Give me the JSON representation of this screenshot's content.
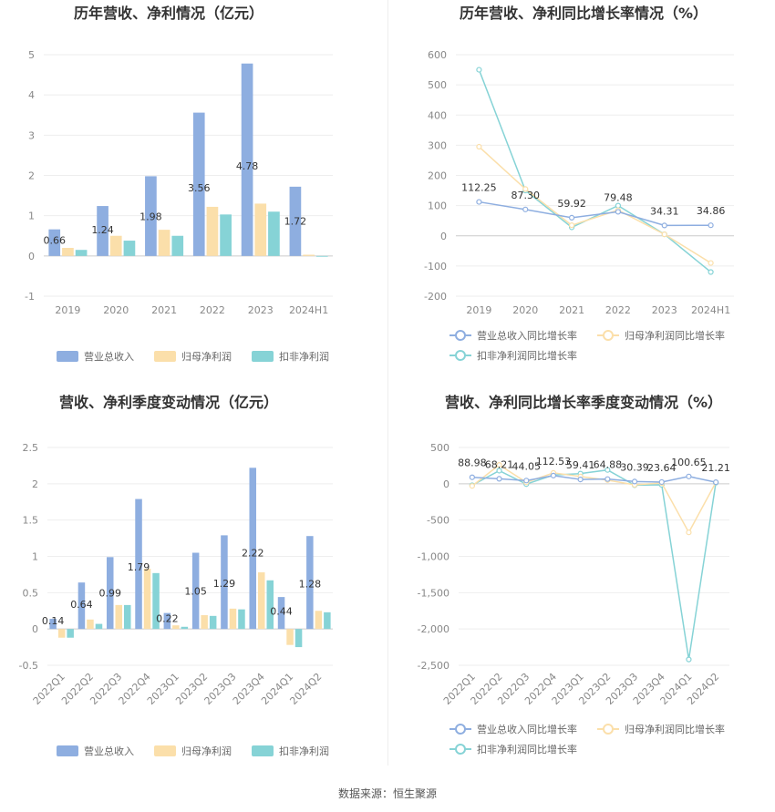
{
  "source_text": "数据来源：恒生聚源",
  "chart_data": [
    {
      "type": "bar",
      "title": "历年营收、净利情况（亿元）",
      "categories": [
        "2019",
        "2020",
        "2021",
        "2022",
        "2023",
        "2024H1"
      ],
      "yticks": [
        "-1",
        "0",
        "1",
        "2",
        "3",
        "4",
        "5"
      ],
      "ylim": [
        -1,
        5
      ],
      "series": [
        {
          "name": "营业总收入",
          "color": "#8eaee0",
          "values": [
            0.66,
            1.24,
            1.98,
            3.56,
            4.78,
            1.72
          ],
          "labels": [
            "0.66",
            "1.24",
            "1.98",
            "3.56",
            "4.78",
            "1.72"
          ]
        },
        {
          "name": "归母净利润",
          "color": "#fbdfaa",
          "values": [
            0.2,
            0.5,
            0.65,
            1.22,
            1.3,
            0.03
          ]
        },
        {
          "name": "扣非净利润",
          "color": "#86d3d6",
          "values": [
            0.15,
            0.38,
            0.5,
            1.03,
            1.1,
            -0.02
          ]
        }
      ],
      "legend": "bottom"
    },
    {
      "type": "line",
      "title": "历年营收、净利同比增长率情况（%）",
      "categories": [
        "2019",
        "2020",
        "2021",
        "2022",
        "2023",
        "2024H1"
      ],
      "yticks": [
        "-200",
        "-100",
        "0",
        "100",
        "200",
        "300",
        "400",
        "500",
        "600"
      ],
      "ylim": [
        -200,
        600
      ],
      "series": [
        {
          "name": "营业总收入同比增长率",
          "color": "#8eaee0",
          "values": [
            112.25,
            87.3,
            59.92,
            79.48,
            34.31,
            34.86
          ],
          "labels": [
            "112.25",
            "87.30",
            "59.92",
            "79.48",
            "34.31",
            "34.86"
          ]
        },
        {
          "name": "归母净利润同比增长率",
          "color": "#fbdfaa",
          "values": [
            295,
            155,
            35,
            85,
            5,
            -90
          ]
        },
        {
          "name": "扣非净利润同比增长率",
          "color": "#86d3d6",
          "values": [
            550,
            150,
            28,
            100,
            5,
            -120
          ]
        }
      ],
      "legend": "bottom"
    },
    {
      "type": "bar",
      "title": "营收、净利季度变动情况（亿元）",
      "categories": [
        "2022Q1",
        "2022Q2",
        "2022Q3",
        "2022Q4",
        "2023Q1",
        "2023Q2",
        "2023Q3",
        "2023Q4",
        "2024Q1",
        "2024Q2"
      ],
      "yticks": [
        "-0.5",
        "0",
        "0.5",
        "1",
        "1.5",
        "2",
        "2.5"
      ],
      "ylim": [
        -0.5,
        2.5
      ],
      "series": [
        {
          "name": "营业总收入",
          "color": "#8eaee0",
          "values": [
            0.14,
            0.64,
            0.99,
            1.79,
            0.22,
            1.05,
            1.29,
            2.22,
            0.44,
            1.28
          ],
          "labels": [
            "0.14",
            "0.64",
            "0.99",
            "1.79",
            "0.22",
            "1.05",
            "1.29",
            "2.22",
            "0.44",
            "1.28"
          ]
        },
        {
          "name": "归母净利润",
          "color": "#fbdfaa",
          "values": [
            -0.12,
            0.13,
            0.33,
            0.83,
            0.05,
            0.19,
            0.28,
            0.78,
            -0.22,
            0.25
          ]
        },
        {
          "name": "扣非净利润",
          "color": "#86d3d6",
          "values": [
            -0.12,
            0.07,
            0.33,
            0.77,
            0.03,
            0.18,
            0.27,
            0.67,
            -0.25,
            0.23
          ]
        }
      ],
      "legend": "bottom"
    },
    {
      "type": "line",
      "title": "营收、净利同比增长率季度变动情况（%）",
      "categories": [
        "2022Q1",
        "2022Q2",
        "2022Q3",
        "2022Q4",
        "2023Q1",
        "2023Q2",
        "2023Q3",
        "2023Q4",
        "2024Q1",
        "2024Q2"
      ],
      "yticks": [
        "-2,500",
        "-2,000",
        "-1,500",
        "-1,000",
        "-500",
        "0",
        "500"
      ],
      "ylim": [
        -2500,
        500
      ],
      "series": [
        {
          "name": "营业总收入同比增长率",
          "color": "#8eaee0",
          "values": [
            88.98,
            68.21,
            44.05,
            112.53,
            59.41,
            64.88,
            30.39,
            23.64,
            100.65,
            21.21
          ],
          "labels": [
            "88.98",
            "68.21",
            "44.05",
            "112.53",
            "59.41",
            "64.88",
            "30.39",
            "23.64",
            "100.65",
            "21.21"
          ]
        },
        {
          "name": "归母净利润同比增长率",
          "color": "#fbdfaa",
          "values": [
            -30,
            260,
            20,
            150,
            100,
            50,
            -15,
            10,
            -670,
            20
          ]
        },
        {
          "name": "扣非净利润同比增长率",
          "color": "#86d3d6",
          "values": [
            -20,
            180,
            -5,
            120,
            140,
            190,
            -20,
            -15,
            -2420,
            15
          ]
        }
      ],
      "legend": "bottom"
    }
  ]
}
